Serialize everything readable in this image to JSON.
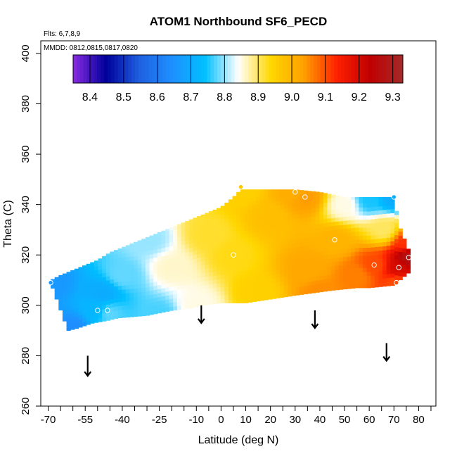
{
  "chart_data": {
    "type": "heatmap",
    "title": "ATOM1 Northbound SF6_PECD",
    "annotations": {
      "flights": "Flts: 6,7,8,9",
      "dates": "MMDD: 0812,0815,0817,0820"
    },
    "xlabel": "Latitude (deg N)",
    "ylabel": "Theta (C)",
    "xlim": [
      -73,
      87
    ],
    "ylim": [
      260,
      405
    ],
    "x_ticks": [
      -70,
      -55,
      -40,
      -25,
      -10,
      0,
      10,
      20,
      30,
      40,
      50,
      60,
      70,
      80
    ],
    "x_tick_labels": [
      "-70",
      "-55",
      "-40",
      "-25",
      "-10",
      "0",
      "10",
      "20",
      "30",
      "40",
      "50",
      "60",
      "70",
      "80"
    ],
    "x_minor_ticks": [
      -65,
      -60,
      -50,
      -45,
      -35,
      -30,
      -20,
      -15,
      -5,
      5,
      15,
      25,
      35,
      45,
      55,
      65,
      75,
      85
    ],
    "y_ticks": [
      260,
      280,
      300,
      320,
      340,
      360,
      380,
      400
    ],
    "y_tick_labels": [
      "260",
      "280",
      "300",
      "320",
      "340",
      "360",
      "380",
      "400"
    ],
    "colorbar": {
      "range": [
        8.35,
        9.33
      ],
      "ticks": [
        8.4,
        8.5,
        8.6,
        8.7,
        8.8,
        8.9,
        9.0,
        9.1,
        9.2,
        9.3
      ],
      "tick_labels": [
        "8.4",
        "8.5",
        "8.6",
        "8.7",
        "8.8",
        "8.9",
        "9.0",
        "9.1",
        "9.2",
        "9.3"
      ],
      "colors": [
        "#8a2be2",
        "#00009a",
        "#1f5fe0",
        "#1e90ff",
        "#00bfff",
        "#ffffff",
        "#ffd700",
        "#ffa000",
        "#ff2000",
        "#c00000",
        "#a52a2a"
      ]
    },
    "field_points": [
      {
        "x": -69,
        "y": 309,
        "v": 8.66
      },
      {
        "x": -60,
        "y": 291,
        "v": 8.64
      },
      {
        "x": -50,
        "y": 298,
        "v": 8.72
      },
      {
        "x": -48,
        "y": 305,
        "v": 8.7
      },
      {
        "x": -46,
        "y": 297,
        "v": 8.78
      },
      {
        "x": -40,
        "y": 312,
        "v": 8.78
      },
      {
        "x": -30,
        "y": 326,
        "v": 8.8
      },
      {
        "x": -25,
        "y": 296,
        "v": 8.77
      },
      {
        "x": -20,
        "y": 315,
        "v": 8.86
      },
      {
        "x": -10,
        "y": 300,
        "v": 8.85
      },
      {
        "x": -5,
        "y": 328,
        "v": 8.92
      },
      {
        "x": 5,
        "y": 320,
        "v": 8.93
      },
      {
        "x": 8,
        "y": 346,
        "v": 8.95
      },
      {
        "x": 15,
        "y": 305,
        "v": 8.95
      },
      {
        "x": 20,
        "y": 335,
        "v": 8.98
      },
      {
        "x": 30,
        "y": 345,
        "v": 9.01
      },
      {
        "x": 34,
        "y": 343,
        "v": 9.04
      },
      {
        "x": 35,
        "y": 315,
        "v": 9.02
      },
      {
        "x": 40,
        "y": 305,
        "v": 9.05
      },
      {
        "x": 46,
        "y": 326,
        "v": 9.0
      },
      {
        "x": 50,
        "y": 340,
        "v": 8.85
      },
      {
        "x": 55,
        "y": 312,
        "v": 9.06
      },
      {
        "x": 60,
        "y": 342,
        "v": 8.75
      },
      {
        "x": 62,
        "y": 316,
        "v": 9.1
      },
      {
        "x": 66,
        "y": 330,
        "v": 8.9
      },
      {
        "x": 70,
        "y": 343,
        "v": 8.7
      },
      {
        "x": 71,
        "y": 309,
        "v": 9.1
      },
      {
        "x": 72,
        "y": 315,
        "v": 9.2
      },
      {
        "x": 76,
        "y": 319,
        "v": 9.28
      },
      {
        "x": 75,
        "y": 325,
        "v": 9.12
      }
    ],
    "profile_boundary": {
      "lower_lat": [
        -69,
        -62,
        -58,
        -55,
        -52,
        -46,
        -42,
        -30,
        -25,
        -20,
        -12,
        -8,
        0,
        10,
        30,
        45,
        55,
        60,
        70,
        76
      ],
      "lower_theta": [
        309,
        290,
        291,
        292,
        293,
        294,
        295,
        296,
        297,
        298,
        299,
        300,
        301,
        301,
        304,
        306,
        307,
        307,
        308,
        313
      ],
      "upper_lat": [
        -69,
        -65,
        -60,
        -55,
        -50,
        -45,
        -40,
        -35,
        -30,
        -25,
        -20,
        -15,
        -10,
        -5,
        0,
        5,
        8,
        12,
        20,
        25,
        30,
        40,
        45,
        50,
        55,
        60,
        70,
        72,
        76
      ],
      "upper_theta": [
        310,
        312,
        314,
        316,
        318,
        321,
        323,
        325,
        327,
        329,
        331,
        333,
        335,
        337,
        339,
        343,
        346,
        346,
        346,
        346,
        346,
        345,
        344,
        343,
        343,
        343,
        343,
        332,
        322
      ]
    },
    "sample_points": [
      {
        "x": -69,
        "y": 309,
        "v": 8.66
      },
      {
        "x": -50,
        "y": 298,
        "v": 8.72
      },
      {
        "x": -46,
        "y": 298,
        "v": 8.76
      },
      {
        "x": 5,
        "y": 320,
        "v": 8.94
      },
      {
        "x": 8,
        "y": 347,
        "v": 8.97
      },
      {
        "x": 30,
        "y": 345,
        "v": 9.01
      },
      {
        "x": 34,
        "y": 343,
        "v": 9.04
      },
      {
        "x": 46,
        "y": 326,
        "v": 9.0
      },
      {
        "x": 62,
        "y": 316,
        "v": 9.1
      },
      {
        "x": 70,
        "y": 343,
        "v": 8.7
      },
      {
        "x": 72,
        "y": 315,
        "v": 9.2
      },
      {
        "x": 71,
        "y": 309,
        "v": 9.1
      },
      {
        "x": 76,
        "y": 319,
        "v": 9.28
      }
    ],
    "arrows": [
      {
        "lat": -54,
        "theta_top": 280,
        "theta_bottom": 272
      },
      {
        "lat": -8,
        "theta_top": 300,
        "theta_bottom": 293
      },
      {
        "lat": 38,
        "theta_top": 298,
        "theta_bottom": 291
      },
      {
        "lat": 67,
        "theta_top": 285,
        "theta_bottom": 278
      }
    ]
  }
}
